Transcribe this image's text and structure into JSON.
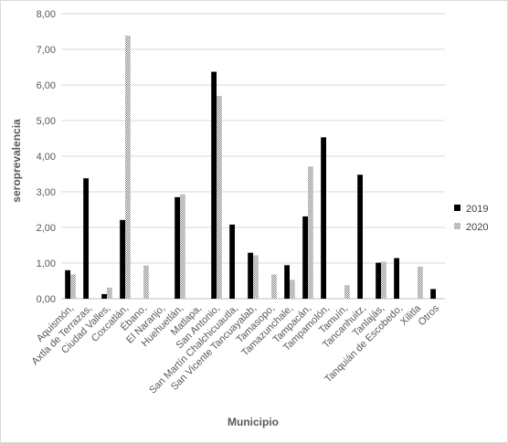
{
  "chart_data": {
    "type": "bar",
    "title": "",
    "xlabel": "Municipio",
    "ylabel": "seroprevalencia",
    "ylim": [
      0,
      8
    ],
    "yticks": [
      "0,00",
      "1,00",
      "2,00",
      "3,00",
      "4,00",
      "5,00",
      "6,00",
      "7,00",
      "8,00"
    ],
    "grid": true,
    "legend": "right",
    "categories": [
      "Aquismón,",
      "Axtla de Terrazas,",
      "Ciudad Valles,",
      "Coxcatlán,",
      "Ébano,",
      "El Naranjo,",
      "Huehuetlán,",
      "Matlapa,",
      "San Antonio,",
      "San Martín Chalchicuautla,",
      "San Vicente Tancuayalab,",
      "Tamasopo,",
      "Tamazunchale,",
      "Tampacán,",
      "Tampamolón,",
      "Tamuín,",
      "Tancanhuitz,",
      "Tanlajás,",
      "Tanquián de Escobedo,",
      "Xilitla",
      "Otros"
    ],
    "series": [
      {
        "name": "2019",
        "color": "#000000",
        "values": [
          0.8,
          3.38,
          0.13,
          2.21,
          0,
          0,
          2.85,
          0,
          6.37,
          2.08,
          1.29,
          0,
          0.94,
          2.31,
          4.53,
          0,
          3.48,
          1.01,
          1.14,
          0,
          0.27
        ]
      },
      {
        "name": "2020",
        "color": "#7f7f7f",
        "values": [
          0.68,
          0,
          0.31,
          7.38,
          0.93,
          0,
          2.93,
          0,
          5.69,
          0,
          1.22,
          0.68,
          0.53,
          3.71,
          0,
          0.38,
          0,
          1.04,
          0,
          0.9,
          0
        ]
      }
    ]
  }
}
